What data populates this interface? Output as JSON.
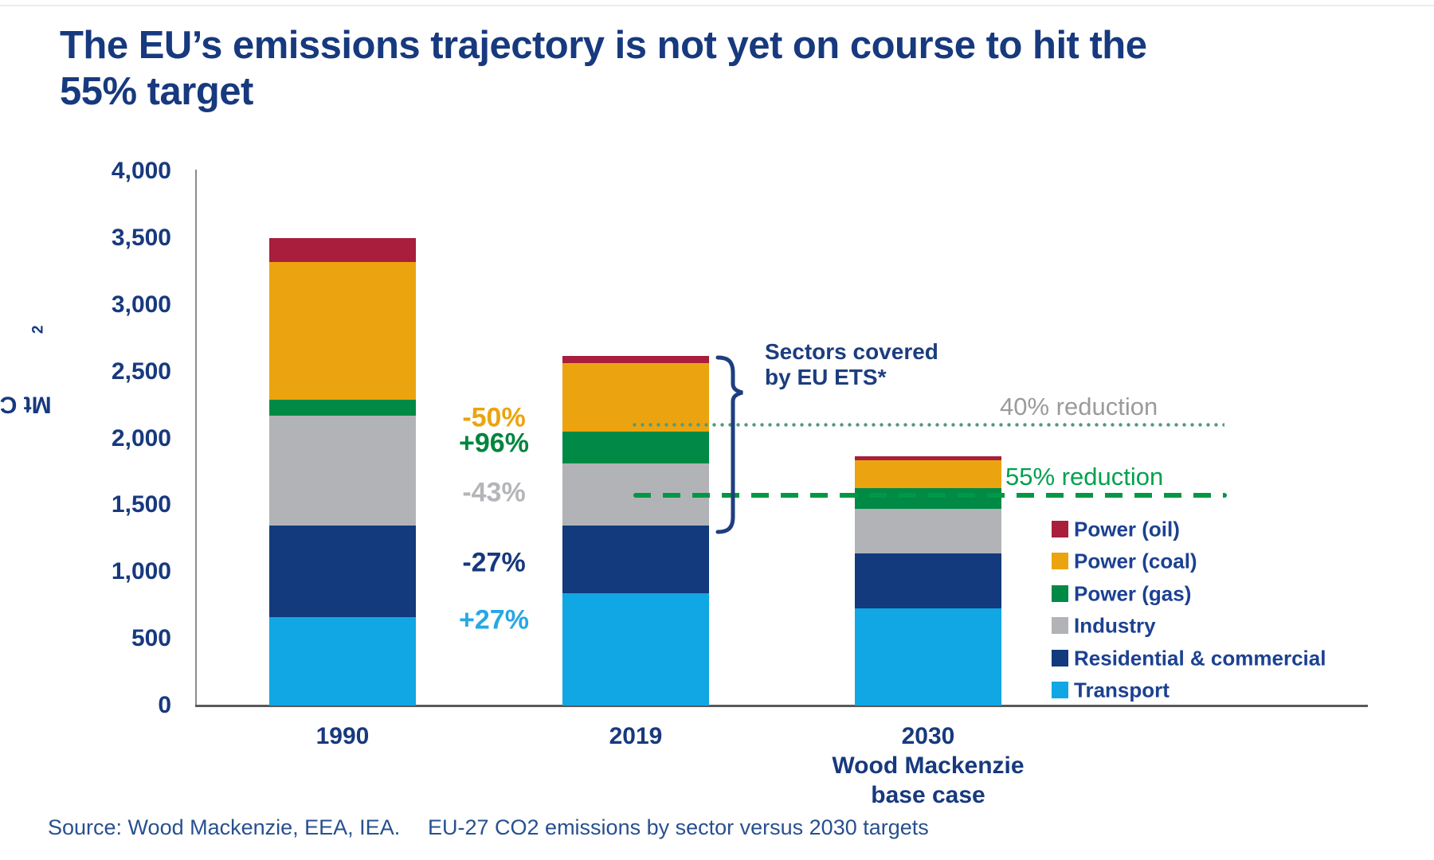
{
  "title": {
    "line1": "The EU’s emissions trajectory is not yet on course to hit the",
    "line2": "55% target"
  },
  "y_axis": {
    "unit_label_main": "Mt CO",
    "unit_label_sub": "2",
    "ticks": [
      "4,000",
      "3,500",
      "3,000",
      "2,500",
      "2,000",
      "1,500",
      "1,000",
      "500",
      "0"
    ],
    "tick_values": [
      4000,
      3500,
      3000,
      2500,
      2000,
      1500,
      1000,
      500,
      0
    ]
  },
  "x_axis": {
    "categories": [
      {
        "label": "1990",
        "sublabels": []
      },
      {
        "label": "2019",
        "sublabels": []
      },
      {
        "label": "2030",
        "sublabels": [
          "Wood Mackenzie",
          "base case"
        ]
      }
    ]
  },
  "sectors": [
    {
      "name": "Transport",
      "color": "#10a7e4"
    },
    {
      "name": "Residential & commercial",
      "color": "#123a7c"
    },
    {
      "name": "Industry",
      "color": "#b2b3b7"
    },
    {
      "name": "Power (gas)",
      "color": "#008a46"
    },
    {
      "name": "Power (coal)",
      "color": "#eba40f"
    },
    {
      "name": "Power (oil)",
      "color": "#a81e3c"
    }
  ],
  "legend_order": [
    "Power (oil)",
    "Power (coal)",
    "Power (gas)",
    "Industry",
    "Residential & commercial",
    "Transport"
  ],
  "percent_changes": [
    {
      "label": "-50%",
      "color": "#eba40f",
      "value_ref": 2150
    },
    {
      "label": "+96%",
      "color": "#00853e",
      "value_ref": 1960
    },
    {
      "label": "-43%",
      "color": "#b4b5b9",
      "value_ref": 1590
    },
    {
      "label": "-27%",
      "color": "#16387d",
      "value_ref": 1070
    },
    {
      "label": "+27%",
      "color": "#27a8e2",
      "value_ref": 635
    }
  ],
  "reduction_lines": [
    {
      "label": "40% reduction",
      "value": 2100,
      "style": "dotted",
      "line_color": "#55987a",
      "label_color": "#9b9b9b"
    },
    {
      "label": "55% reduction",
      "value": 1575,
      "style": "dashed",
      "line_color": "#009845",
      "label_color": "#00a14e"
    }
  ],
  "ets_annotation": {
    "line1": "Sectors covered",
    "line2": "by EU ETS*"
  },
  "footer": {
    "source": "Source: Wood Mackenzie, EEA, IEA.",
    "subtitle": "EU-27 CO2 emissions by sector versus 2030 targets"
  },
  "chart_data": {
    "type": "bar",
    "stacked": true,
    "title": "The EU’s emissions trajectory is not yet on course to hit the 55% target",
    "ylabel": "Mt CO2",
    "ylim": [
      0,
      4000
    ],
    "ytick_step": 500,
    "grid": false,
    "legend_position": "right-inside",
    "categories": [
      "1990",
      "2019",
      "2030 Wood Mackenzie base case"
    ],
    "series": [
      {
        "name": "Transport",
        "color": "#10a7e4",
        "values": [
          660,
          840,
          730
        ]
      },
      {
        "name": "Residential & commercial",
        "color": "#123a7c",
        "values": [
          690,
          505,
          410
        ]
      },
      {
        "name": "Industry",
        "color": "#b2b3b7",
        "values": [
          820,
          470,
          335
        ]
      },
      {
        "name": "Power (gas)",
        "color": "#008a46",
        "values": [
          120,
          235,
          150
        ]
      },
      {
        "name": "Power (coal)",
        "color": "#eba40f",
        "values": [
          1030,
          515,
          210
        ]
      },
      {
        "name": "Power (oil)",
        "color": "#a81e3c",
        "values": [
          180,
          55,
          30
        ]
      }
    ],
    "totals": [
      3500,
      2620,
      1865
    ],
    "annotations": {
      "percent_change_1990_to_2019": {
        "Power (coal)": "-50%",
        "Power (gas)": "+96%",
        "Industry": "-43%",
        "Residential & commercial": "-27%",
        "Transport": "+27%"
      },
      "target_lines": [
        {
          "label": "40% reduction",
          "value": 2100
        },
        {
          "label": "55% reduction",
          "value": 1575
        }
      ],
      "brace_note": "Sectors covered by EU ETS*"
    }
  }
}
